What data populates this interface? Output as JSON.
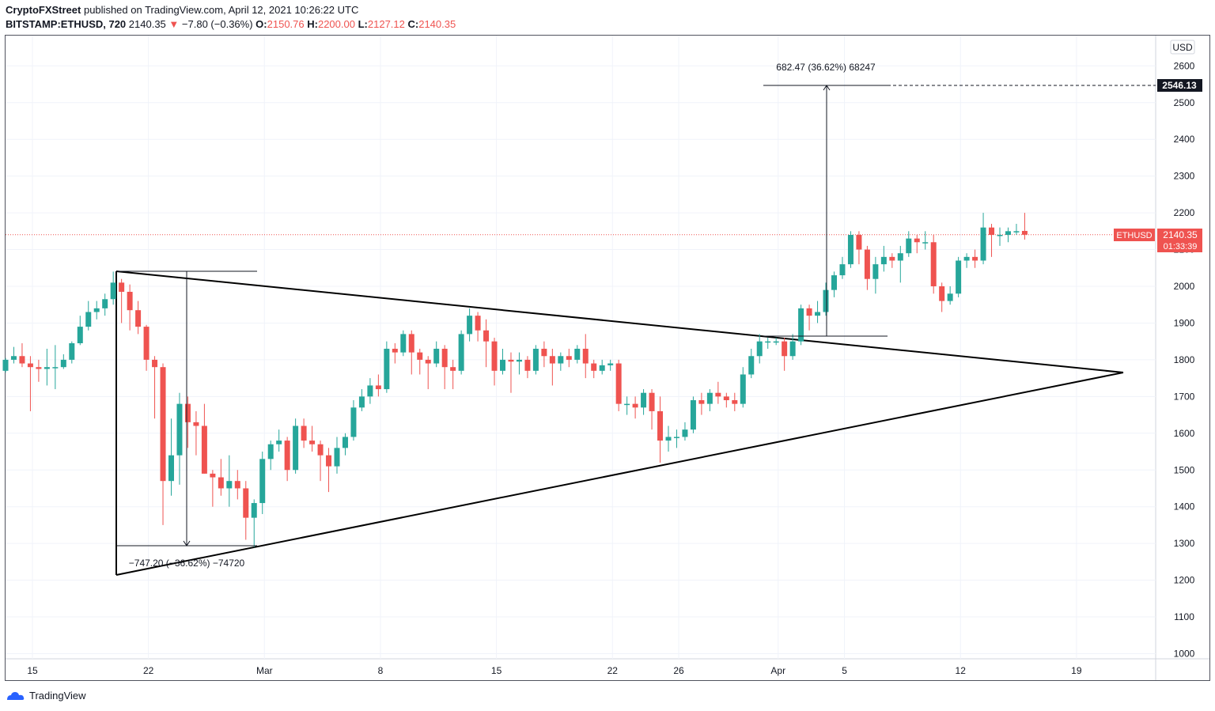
{
  "header": {
    "author": "CryptoFXStreet",
    "published_text": " published on TradingView.com, April 12, 2021 10:26:22 UTC"
  },
  "ticker": {
    "symbol": "BITSTAMP:ETHUSD, 720",
    "last": "2140.35",
    "change": "−7.80 (−0.36%)",
    "open_label": "O:",
    "open": "2150.76",
    "high_label": "H:",
    "high": "2200.00",
    "low_label": "L:",
    "low": "2127.12",
    "close_label": "C:",
    "close": "2140.35"
  },
  "footer": {
    "brand": "TradingView"
  },
  "chart_data": {
    "type": "candlestick",
    "symbol": "ETHUSD",
    "currency": "USD",
    "y_ticks": [
      1000,
      1100,
      1200,
      1300,
      1400,
      1500,
      1600,
      1700,
      1800,
      1900,
      2000,
      2100,
      2200,
      2300,
      2400,
      2500,
      2600
    ],
    "ylim": [
      970,
      2660
    ],
    "x_tick_labels": [
      {
        "label": "15",
        "date": "2021-02-15"
      },
      {
        "label": "22",
        "date": "2021-02-22"
      },
      {
        "label": "Mar",
        "date": "2021-03-01"
      },
      {
        "label": "8",
        "date": "2021-03-08"
      },
      {
        "label": "15",
        "date": "2021-03-15"
      },
      {
        "label": "22",
        "date": "2021-03-22"
      },
      {
        "label": "26",
        "date": "2021-03-26"
      },
      {
        "label": "Apr",
        "date": "2021-04-01"
      },
      {
        "label": "5",
        "date": "2021-04-05"
      },
      {
        "label": "12",
        "date": "2021-04-12"
      },
      {
        "label": "19",
        "date": "2021-04-19"
      }
    ],
    "candles": [
      [
        1770,
        1800,
        1765,
        1805
      ],
      [
        1800,
        1810,
        1790,
        1835
      ],
      [
        1810,
        1790,
        1780,
        1845
      ],
      [
        1790,
        1780,
        1660,
        1810
      ],
      [
        1780,
        1775,
        1740,
        1800
      ],
      [
        1775,
        1780,
        1730,
        1830
      ],
      [
        1780,
        1780,
        1720,
        1840
      ],
      [
        1780,
        1800,
        1775,
        1815
      ],
      [
        1800,
        1845,
        1790,
        1850
      ],
      [
        1845,
        1890,
        1840,
        1920
      ],
      [
        1890,
        1930,
        1880,
        1960
      ],
      [
        1930,
        1940,
        1910,
        1960
      ],
      [
        1940,
        1965,
        1920,
        1980
      ],
      [
        1965,
        2010,
        1950,
        2040
      ],
      [
        2010,
        1985,
        1900,
        2020
      ],
      [
        1985,
        1935,
        1880,
        2005
      ],
      [
        1935,
        1890,
        1870,
        1960
      ],
      [
        1890,
        1800,
        1770,
        1895
      ],
      [
        1800,
        1780,
        1640,
        1810
      ],
      [
        1780,
        1470,
        1350,
        1790
      ],
      [
        1470,
        1540,
        1430,
        1640
      ],
      [
        1540,
        1680,
        1460,
        1710
      ],
      [
        1680,
        1630,
        1560,
        1700
      ],
      [
        1630,
        1620,
        1540,
        1660
      ],
      [
        1620,
        1490,
        1490,
        1680
      ],
      [
        1490,
        1480,
        1400,
        1500
      ],
      [
        1480,
        1450,
        1430,
        1530
      ],
      [
        1450,
        1470,
        1400,
        1540
      ],
      [
        1470,
        1450,
        1420,
        1500
      ],
      [
        1450,
        1370,
        1310,
        1470
      ],
      [
        1370,
        1410,
        1290,
        1420
      ],
      [
        1410,
        1530,
        1380,
        1550
      ],
      [
        1530,
        1570,
        1500,
        1580
      ],
      [
        1570,
        1580,
        1550,
        1610
      ],
      [
        1580,
        1500,
        1470,
        1590
      ],
      [
        1500,
        1620,
        1490,
        1640
      ],
      [
        1620,
        1580,
        1560,
        1640
      ],
      [
        1580,
        1570,
        1550,
        1620
      ],
      [
        1570,
        1540,
        1470,
        1580
      ],
      [
        1540,
        1510,
        1440,
        1560
      ],
      [
        1510,
        1560,
        1490,
        1590
      ],
      [
        1560,
        1590,
        1540,
        1600
      ],
      [
        1590,
        1670,
        1580,
        1690
      ],
      [
        1670,
        1700,
        1660,
        1720
      ],
      [
        1700,
        1730,
        1680,
        1750
      ],
      [
        1730,
        1720,
        1700,
        1760
      ],
      [
        1720,
        1830,
        1710,
        1850
      ],
      [
        1830,
        1820,
        1790,
        1845
      ],
      [
        1820,
        1870,
        1810,
        1880
      ],
      [
        1870,
        1820,
        1760,
        1880
      ],
      [
        1820,
        1800,
        1760,
        1830
      ],
      [
        1800,
        1790,
        1720,
        1810
      ],
      [
        1790,
        1830,
        1780,
        1850
      ],
      [
        1830,
        1780,
        1720,
        1840
      ],
      [
        1780,
        1770,
        1720,
        1800
      ],
      [
        1770,
        1870,
        1760,
        1880
      ],
      [
        1870,
        1920,
        1850,
        1940
      ],
      [
        1920,
        1880,
        1850,
        1930
      ],
      [
        1880,
        1850,
        1780,
        1910
      ],
      [
        1850,
        1770,
        1730,
        1860
      ],
      [
        1770,
        1800,
        1760,
        1830
      ],
      [
        1800,
        1795,
        1710,
        1820
      ],
      [
        1795,
        1800,
        1760,
        1820
      ],
      [
        1800,
        1770,
        1750,
        1810
      ],
      [
        1770,
        1830,
        1760,
        1840
      ],
      [
        1830,
        1810,
        1780,
        1850
      ],
      [
        1810,
        1790,
        1730,
        1830
      ],
      [
        1790,
        1810,
        1770,
        1820
      ],
      [
        1810,
        1800,
        1780,
        1830
      ],
      [
        1800,
        1830,
        1790,
        1840
      ],
      [
        1830,
        1790,
        1750,
        1870
      ],
      [
        1790,
        1770,
        1750,
        1800
      ],
      [
        1770,
        1785,
        1760,
        1800
      ],
      [
        1785,
        1790,
        1770,
        1800
      ],
      [
        1790,
        1680,
        1660,
        1800
      ],
      [
        1680,
        1680,
        1650,
        1700
      ],
      [
        1680,
        1670,
        1640,
        1700
      ],
      [
        1670,
        1710,
        1650,
        1720
      ],
      [
        1710,
        1660,
        1610,
        1720
      ],
      [
        1660,
        1580,
        1520,
        1700
      ],
      [
        1580,
        1590,
        1550,
        1620
      ],
      [
        1590,
        1590,
        1560,
        1610
      ],
      [
        1590,
        1610,
        1580,
        1630
      ],
      [
        1610,
        1690,
        1600,
        1700
      ],
      [
        1690,
        1680,
        1650,
        1710
      ],
      [
        1680,
        1710,
        1660,
        1720
      ],
      [
        1710,
        1700,
        1680,
        1740
      ],
      [
        1700,
        1690,
        1670,
        1710
      ],
      [
        1690,
        1680,
        1660,
        1710
      ],
      [
        1680,
        1760,
        1670,
        1780
      ],
      [
        1760,
        1810,
        1750,
        1830
      ],
      [
        1810,
        1850,
        1790,
        1870
      ],
      [
        1850,
        1850,
        1830,
        1860
      ],
      [
        1850,
        1850,
        1840,
        1860
      ],
      [
        1850,
        1810,
        1770,
        1860
      ],
      [
        1810,
        1850,
        1800,
        1870
      ],
      [
        1850,
        1940,
        1840,
        1950
      ],
      [
        1940,
        1920,
        1880,
        1950
      ],
      [
        1920,
        1930,
        1900,
        1960
      ],
      [
        1930,
        1990,
        1920,
        2010
      ],
      [
        1990,
        2030,
        1970,
        2040
      ],
      [
        2030,
        2060,
        2020,
        2080
      ],
      [
        2060,
        2140,
        2050,
        2150
      ],
      [
        2140,
        2100,
        2060,
        2150
      ],
      [
        2100,
        2020,
        1990,
        2110
      ],
      [
        2020,
        2060,
        1980,
        2080
      ],
      [
        2060,
        2080,
        2040,
        2110
      ],
      [
        2080,
        2070,
        2050,
        2090
      ],
      [
        2070,
        2090,
        2010,
        2110
      ],
      [
        2090,
        2130,
        2080,
        2150
      ],
      [
        2130,
        2120,
        2090,
        2140
      ],
      [
        2120,
        2120,
        2100,
        2150
      ],
      [
        2120,
        2000,
        1980,
        2140
      ],
      [
        2000,
        1960,
        1930,
        2010
      ],
      [
        1960,
        1980,
        1950,
        2000
      ],
      [
        1980,
        2070,
        1970,
        2080
      ],
      [
        2070,
        2080,
        2050,
        2090
      ],
      [
        2080,
        2070,
        2050,
        2100
      ],
      [
        2070,
        2160,
        2060,
        2200
      ],
      [
        2160,
        2140,
        2080,
        2170
      ],
      [
        2140,
        2140,
        2110,
        2160
      ],
      [
        2140,
        2150,
        2120,
        2160
      ],
      [
        2150,
        2150,
        2140,
        2170
      ],
      [
        2150.76,
        2140.35,
        2127.12,
        2200
      ]
    ],
    "last_price": 2140.35,
    "last_price_label": "ETHUSD",
    "countdown": "01:33:39",
    "target_price_label": "2546.13",
    "measure_up_text": "682.47 (36.62%) 68247",
    "measure_down_text": "−747.20 (−36.62%) −74720",
    "colors": {
      "up": "#26a69a",
      "down": "#ef5350",
      "pattern_line": "#000000",
      "grid": "#f0f3fa"
    }
  }
}
